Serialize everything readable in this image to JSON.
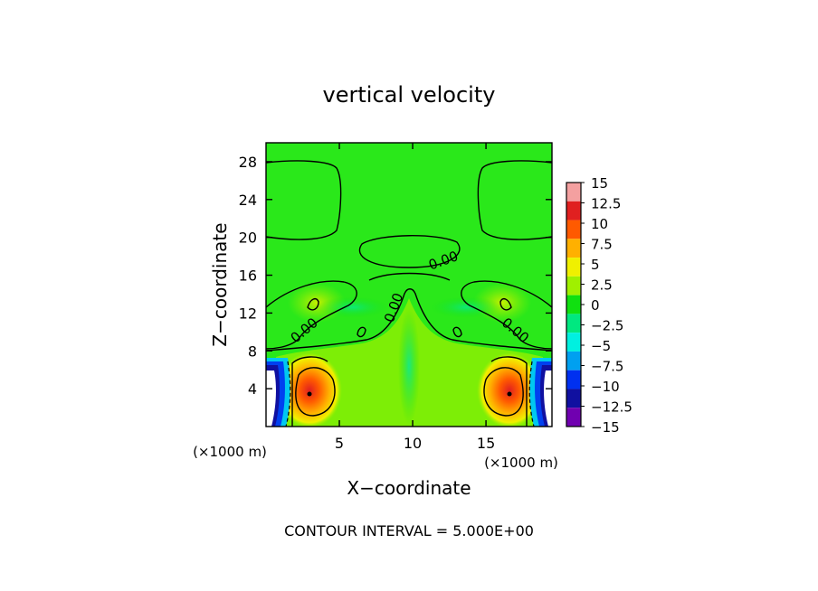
{
  "chart_data": {
    "type": "heatmap",
    "title": "vertical velocity",
    "xlabel": "X−coordinate",
    "ylabel": "Z−coordinate",
    "x_unit": "(×1000 m)",
    "z_unit": "(×1000 m)",
    "xlim": [
      0,
      19.5
    ],
    "ylim": [
      0,
      30
    ],
    "x_ticks": [
      {
        "value": 5,
        "label": "5"
      },
      {
        "value": 10,
        "label": "10"
      },
      {
        "value": 15,
        "label": "15"
      }
    ],
    "y_ticks": [
      {
        "value": 4,
        "label": "4"
      },
      {
        "value": 8,
        "label": "8"
      },
      {
        "value": 12,
        "label": "12"
      },
      {
        "value": 16,
        "label": "16"
      },
      {
        "value": 20,
        "label": "20"
      },
      {
        "value": 24,
        "label": "24"
      },
      {
        "value": 28,
        "label": "28"
      }
    ],
    "colorbar": {
      "levels": [
        "15",
        "12.5",
        "10",
        "7.5",
        "5",
        "2.5",
        "0",
        "−2.5",
        "−5",
        "−7.5",
        "−10",
        "−12.5",
        "−15"
      ],
      "colors": [
        "#f4a0a0",
        "#e02020",
        "#ff5a00",
        "#ffb000",
        "#f0f000",
        "#a0f000",
        "#10e010",
        "#00e880",
        "#00f0e0",
        "#00a0f0",
        "#0030f0",
        "#1010a0",
        "#7000b0"
      ]
    },
    "contour_labels": [
      {
        "x": 12.2,
        "z": 17.1,
        "text": "0.00"
      },
      {
        "x": 9.0,
        "z": 12.4,
        "text": "0.00"
      },
      {
        "x": 2.8,
        "z": 9.8,
        "text": "0.00"
      },
      {
        "x": 16.8,
        "z": 9.8,
        "text": "0.00"
      }
    ],
    "contour_interval": "CONTOUR INTERVAL = 5.000E+00"
  }
}
